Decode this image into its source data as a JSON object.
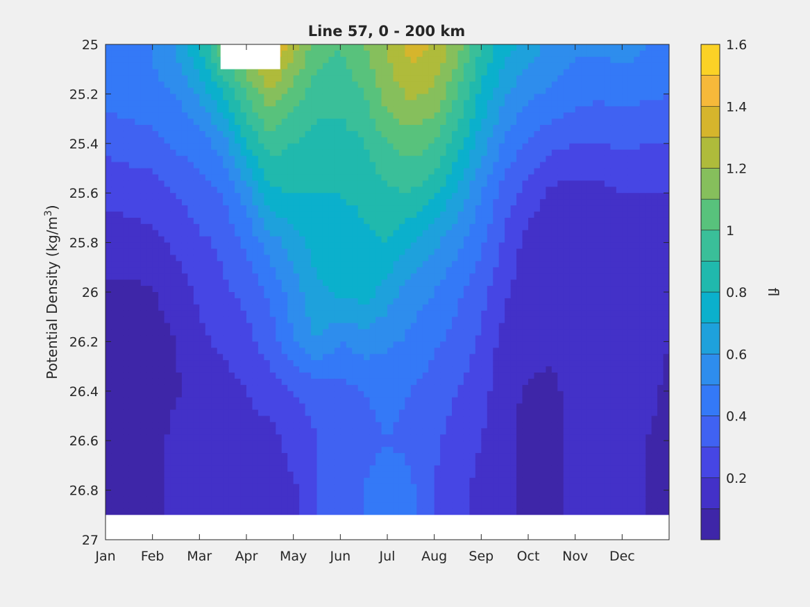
{
  "chart_data": {
    "type": "heatmap",
    "title": "Line 57, 0 - 200 km",
    "xlabel": "",
    "ylabel": "Potential Density (kg/m",
    "ylabel_sup": "3",
    "ylabel_close": ")",
    "x_tick_labels": [
      "Jan",
      "Feb",
      "Mar",
      "Apr",
      "May",
      "Jun",
      "Jul",
      "Aug",
      "Sep",
      "Oct",
      "Nov",
      "Dec"
    ],
    "x_range": [
      1,
      13
    ],
    "y_tick_values": [
      25,
      25.2,
      25.4,
      25.6,
      25.8,
      26,
      26.2,
      26.4,
      26.6,
      26.8,
      27
    ],
    "y_tick_labels": [
      "25",
      "25.2",
      "25.4",
      "25.6",
      "25.8",
      "26",
      "26.2",
      "26.4",
      "26.6",
      "26.8",
      "27"
    ],
    "y_range": [
      25,
      27
    ],
    "y_reversed": true,
    "colorbar": {
      "label": "fl",
      "range": [
        0,
        1.6
      ],
      "tick_values": [
        0.2,
        0.4,
        0.6,
        0.8,
        1.0,
        1.2,
        1.4,
        1.6
      ],
      "tick_labels": [
        "0.2",
        "0.4",
        "0.6",
        "0.8",
        "1",
        "1.2",
        "1.4",
        "1.6"
      ],
      "levels": [
        0,
        0.1,
        0.2,
        0.3,
        0.4,
        0.5,
        0.6,
        0.7,
        0.8,
        0.9,
        1.0,
        1.1,
        1.2,
        1.3,
        1.4,
        1.5,
        1.6
      ],
      "colors": [
        "#3e26a8",
        "#4331c8",
        "#4646e4",
        "#4062f2",
        "#3479f7",
        "#2e8ded",
        "#1ea1dc",
        "#0bb0cc",
        "#20b9ad",
        "#3abf99",
        "#58c27c",
        "#86bf5c",
        "#afbb3b",
        "#d6b52c",
        "#f6b93a",
        "#fbd226",
        "#f7ec1d"
      ]
    },
    "grid": false,
    "legend": "none",
    "series": [
      {
        "x": 1.0,
        "values": [
          0.45,
          0.44,
          0.33,
          0.22,
          0.15,
          0.08,
          0.06,
          0.06,
          0.05,
          0.05,
          null
        ]
      },
      {
        "x": 1.5,
        "values": [
          0.48,
          0.46,
          0.35,
          0.24,
          0.16,
          0.08,
          0.05,
          0.05,
          0.05,
          0.05,
          null
        ]
      },
      {
        "x": 2.0,
        "values": [
          0.5,
          0.48,
          0.36,
          0.25,
          0.17,
          0.09,
          0.06,
          0.06,
          0.06,
          0.06,
          null
        ]
      },
      {
        "x": 2.5,
        "values": [
          0.62,
          0.5,
          0.42,
          0.3,
          0.22,
          0.15,
          0.1,
          0.09,
          0.13,
          0.13,
          null
        ]
      },
      {
        "x": 3.0,
        "values": [
          0.8,
          0.62,
          0.45,
          0.36,
          0.28,
          0.22,
          0.18,
          0.12,
          0.12,
          0.13,
          null
        ]
      },
      {
        "x": 3.5,
        "values": [
          1.1,
          0.8,
          0.55,
          0.4,
          0.32,
          0.28,
          0.22,
          0.16,
          0.15,
          0.15,
          null
        ]
      },
      {
        "x": 4.0,
        "values": [
          1.25,
          1.0,
          0.8,
          0.55,
          0.42,
          0.33,
          0.27,
          0.2,
          0.16,
          0.14,
          null
        ]
      },
      {
        "x": 4.5,
        "values": [
          1.45,
          1.18,
          0.95,
          0.78,
          0.55,
          0.42,
          0.35,
          0.25,
          0.16,
          0.16,
          null
        ]
      },
      {
        "x": 5.0,
        "values": [
          1.25,
          1.05,
          0.9,
          0.8,
          0.65,
          0.55,
          0.5,
          0.3,
          0.24,
          0.18,
          null
        ]
      },
      {
        "x": 5.5,
        "values": [
          1.05,
          0.95,
          0.85,
          0.8,
          0.75,
          0.68,
          0.6,
          0.33,
          0.3,
          0.3,
          null
        ]
      },
      {
        "x": 6.0,
        "values": [
          1.0,
          0.95,
          0.85,
          0.8,
          0.76,
          0.72,
          0.5,
          0.36,
          0.35,
          0.36,
          null
        ]
      },
      {
        "x": 6.5,
        "values": [
          1.1,
          1.0,
          0.9,
          0.82,
          0.78,
          0.75,
          0.55,
          0.4,
          0.38,
          0.4,
          null
        ]
      },
      {
        "x": 7.0,
        "values": [
          1.2,
          1.15,
          1.0,
          0.88,
          0.8,
          0.65,
          0.52,
          0.42,
          0.4,
          0.44,
          null
        ]
      },
      {
        "x": 7.5,
        "values": [
          1.35,
          1.22,
          1.05,
          0.9,
          0.7,
          0.55,
          0.48,
          0.4,
          0.38,
          0.42,
          null
        ]
      },
      {
        "x": 8.0,
        "values": [
          1.3,
          1.18,
          1.0,
          0.82,
          0.62,
          0.5,
          0.42,
          0.35,
          0.32,
          0.3,
          null
        ]
      },
      {
        "x": 8.5,
        "values": [
          1.15,
          1.0,
          0.85,
          0.68,
          0.52,
          0.42,
          0.36,
          0.3,
          0.25,
          0.22,
          null
        ]
      },
      {
        "x": 9.0,
        "values": [
          0.9,
          0.78,
          0.65,
          0.5,
          0.42,
          0.34,
          0.28,
          0.24,
          0.2,
          0.18,
          null
        ]
      },
      {
        "x": 9.5,
        "values": [
          0.75,
          0.62,
          0.48,
          0.35,
          0.28,
          0.22,
          0.16,
          0.13,
          0.12,
          0.12,
          null
        ]
      },
      {
        "x": 10.0,
        "values": [
          0.65,
          0.52,
          0.38,
          0.26,
          0.16,
          0.14,
          0.13,
          0.09,
          0.07,
          0.07,
          null
        ]
      },
      {
        "x": 10.5,
        "values": [
          0.58,
          0.48,
          0.33,
          0.18,
          0.14,
          0.13,
          0.12,
          0.08,
          0.06,
          0.06,
          null
        ]
      },
      {
        "x": 11.0,
        "values": [
          0.52,
          0.44,
          0.3,
          0.16,
          0.13,
          0.13,
          0.13,
          0.13,
          0.13,
          0.13,
          null
        ]
      },
      {
        "x": 11.5,
        "values": [
          0.52,
          0.42,
          0.3,
          0.17,
          0.14,
          0.13,
          0.13,
          0.13,
          0.13,
          0.13,
          null
        ]
      },
      {
        "x": 12.0,
        "values": [
          0.55,
          0.44,
          0.32,
          0.2,
          0.15,
          0.14,
          0.14,
          0.13,
          0.13,
          0.13,
          null
        ]
      },
      {
        "x": 12.5,
        "values": [
          0.5,
          0.42,
          0.3,
          0.2,
          0.16,
          0.15,
          0.14,
          0.13,
          0.1,
          0.1,
          null
        ]
      },
      {
        "x": 13.0,
        "values": [
          0.45,
          0.4,
          0.3,
          0.2,
          0.15,
          0.13,
          0.1,
          0.08,
          0.07,
          0.07,
          null
        ]
      }
    ],
    "blank_regions": [
      {
        "x": [
          3.45,
          4.72
        ],
        "y": [
          25,
          25.1
        ]
      },
      {
        "x": [
          1,
          13
        ],
        "y": [
          26.9,
          27
        ]
      }
    ]
  }
}
